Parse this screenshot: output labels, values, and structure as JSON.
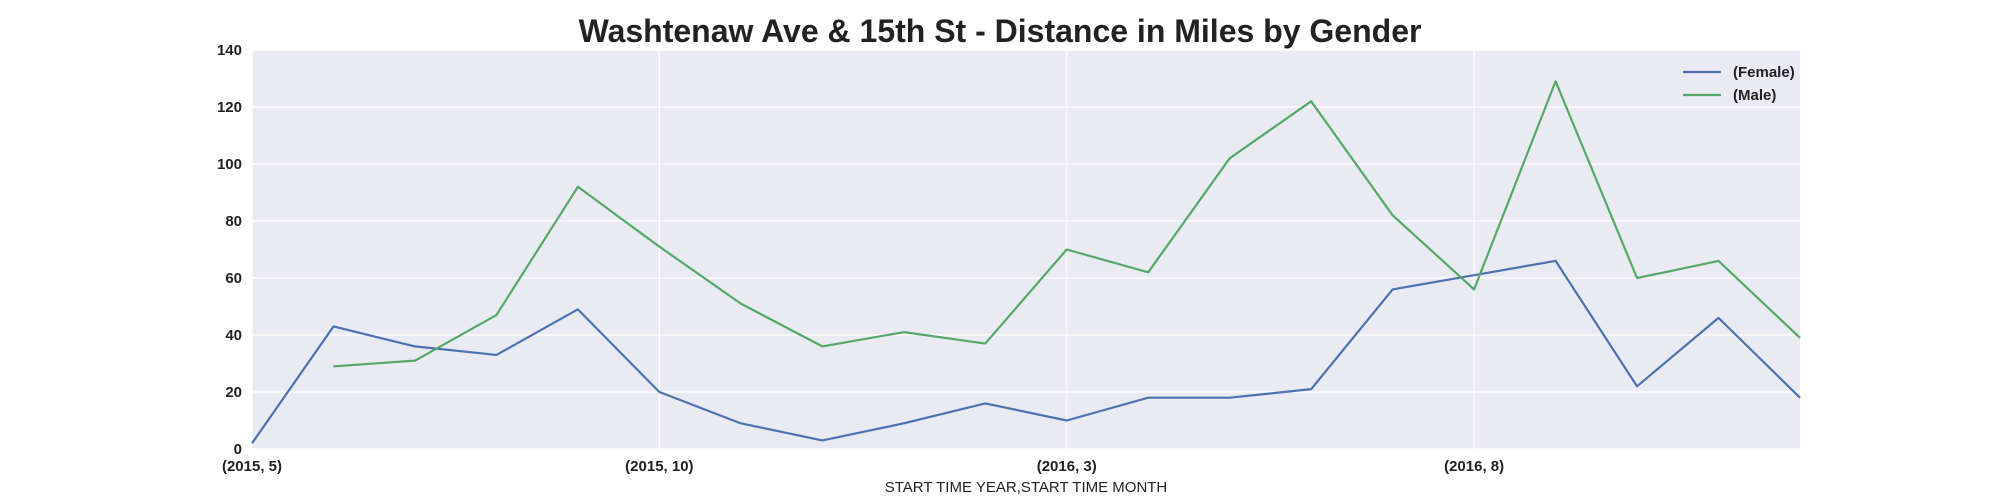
{
  "chart_data": {
    "type": "line",
    "title": "Washtenaw Ave & 15th St - Distance in Miles by Gender",
    "xlabel": "START TIME YEAR,START TIME MONTH",
    "ylabel": "",
    "ylim": [
      0,
      140
    ],
    "yticks": [
      0,
      20,
      40,
      60,
      80,
      100,
      120,
      140
    ],
    "x": [
      "(2015, 5)",
      "(2015, 6)",
      "(2015, 7)",
      "(2015, 8)",
      "(2015, 9)",
      "(2015, 10)",
      "(2015, 11)",
      "(2015, 12)",
      "(2016, 1)",
      "(2016, 2)",
      "(2016, 3)",
      "(2016, 4)",
      "(2016, 5)",
      "(2016, 6)",
      "(2016, 7)",
      "(2016, 8)",
      "(2016, 9)",
      "(2016, 10)",
      "(2016, 11)",
      "(2016, 12)"
    ],
    "xtick_labels": [
      "(2015, 5)",
      "(2015, 10)",
      "(2016, 3)",
      "(2016, 8)"
    ],
    "grid": true,
    "legend_position": "top-right",
    "series": [
      {
        "name": "(Female)",
        "color": "#4c72b0",
        "values": [
          2,
          43,
          36,
          33,
          49,
          20,
          9,
          3,
          9,
          16,
          10,
          18,
          18,
          21,
          56,
          61,
          66,
          22,
          46,
          18
        ]
      },
      {
        "name": "(Male)",
        "color": "#55a868",
        "values": [
          null,
          29,
          31,
          47,
          92,
          71,
          51,
          36,
          41,
          37,
          70,
          62,
          102,
          122,
          82,
          56,
          129,
          60,
          66,
          39
        ]
      }
    ],
    "colors": {
      "plot_background": "#eaeaf2",
      "grid": "#ffffff"
    }
  }
}
